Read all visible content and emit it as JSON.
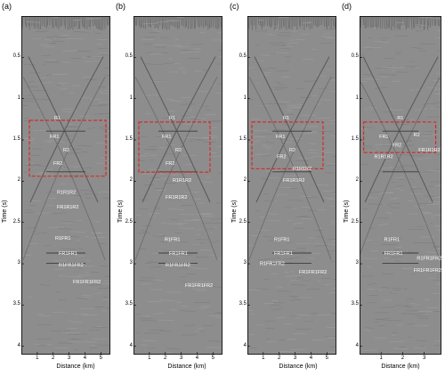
{
  "panels": [
    {
      "label": "(a)",
      "ylabel": "Time (s)",
      "xlabel": "Distance (km)",
      "xticks": [
        "1",
        "2",
        "3",
        "4",
        "5"
      ],
      "yticks": [
        "0.5",
        "1",
        "1.5",
        "2",
        "2.5",
        "3",
        "3.5",
        "4"
      ],
      "annotations": [
        "R1",
        "FR1",
        "R2",
        "FR2",
        "R1R1R2",
        "FR1R1R2",
        "R1FR1",
        "FR1FR1",
        "R1FR1FR2",
        "FR1FR1FR2"
      ]
    },
    {
      "label": "(b)",
      "ylabel": "Time (s)",
      "xlabel": "Distance (km)",
      "xticks": [
        "1",
        "2",
        "3",
        "4",
        "5"
      ],
      "yticks": [
        "0.5",
        "1",
        "1.5",
        "2",
        "2.5",
        "3",
        "3.5",
        "4"
      ],
      "annotations": [
        "R1",
        "FR1",
        "R2",
        "FR2",
        "R1R1R2",
        "FR1R1R2",
        "R1FR1",
        "FR1FR1",
        "R1FR1FR2",
        "FR1FR1FR2"
      ]
    },
    {
      "label": "(c)",
      "ylabel": "Time (s)",
      "xlabel": "Distance (km)",
      "xticks": [
        "1",
        "2",
        "3",
        "4",
        "5"
      ],
      "yticks": [
        "0.5",
        "1",
        "1.5",
        "2",
        "2.5",
        "3",
        "3.5",
        "4"
      ],
      "annotations": [
        "R1",
        "FR1",
        "R2",
        "FR2",
        "R1R1R2",
        "FR1R1R2",
        "R1FR1",
        "FR1FR1",
        "R1FR1FR2",
        "FR1FR1FR2"
      ]
    },
    {
      "label": "(d)",
      "ylabel": "Time (s)",
      "xlabel": "Distance (km)",
      "xticks": [
        "1",
        "2",
        "3"
      ],
      "yticks": [
        "0.5",
        "1",
        "1.5",
        "2",
        "2.5",
        "3",
        "3.5",
        "4"
      ],
      "annotations": [
        "R1",
        "FR1",
        "R2",
        "FR2",
        "R1R1R2",
        "FR1R1R2",
        "R1FR1",
        "FR1FR1",
        "R1FR1FR2",
        "FR1FR1FR2"
      ]
    }
  ]
}
